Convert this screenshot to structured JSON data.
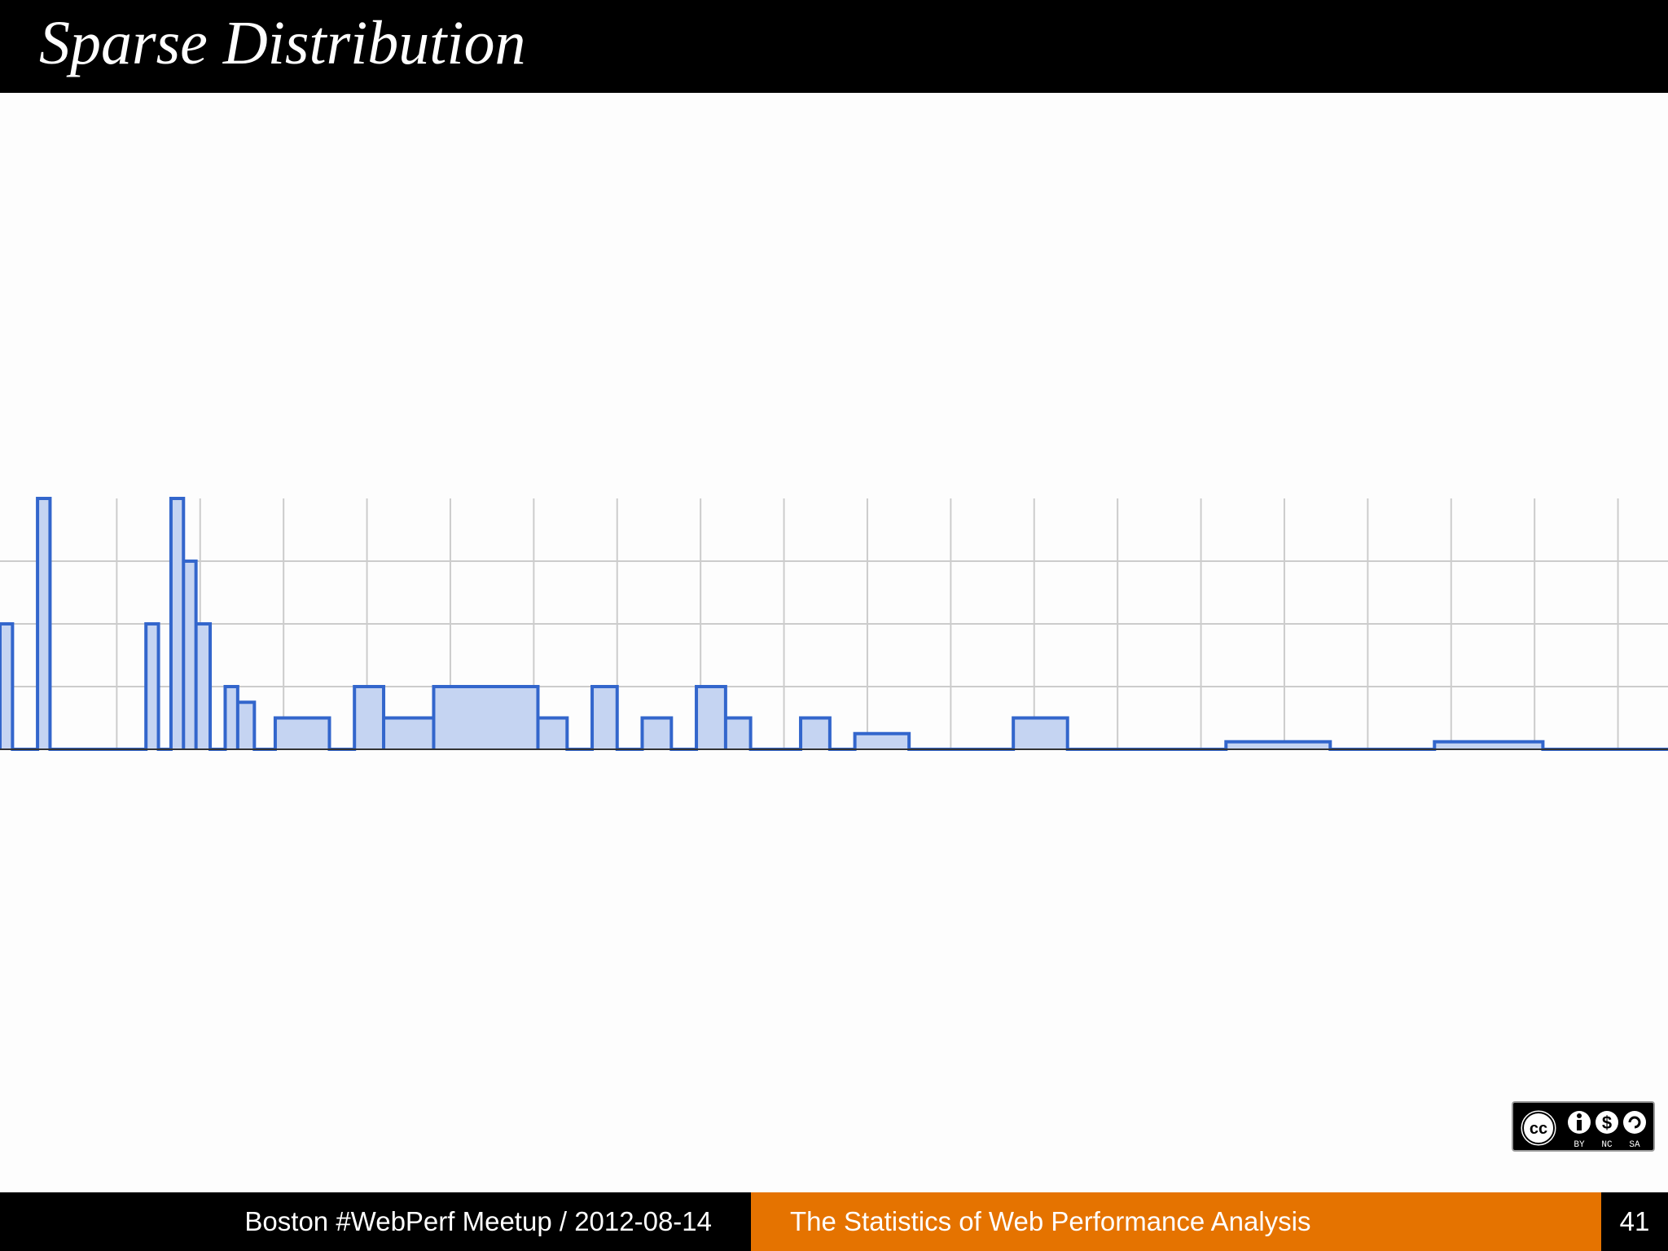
{
  "slide": {
    "title": "Sparse Distribution",
    "page_number": "41"
  },
  "footer": {
    "left_text": "Boston #WebPerf Meetup / 2012-08-14",
    "center_text": "The Statistics of Web Performance Analysis"
  },
  "license": {
    "icon": "cc-by-nc-sa-icon",
    "labels": [
      "BY",
      "NC",
      "SA"
    ]
  },
  "chart_data": {
    "type": "area",
    "step": true,
    "title": "",
    "xlabel": "",
    "ylabel": "",
    "x_range": [
      0,
      20
    ],
    "ylim": [
      0,
      4
    ],
    "grid": true,
    "y_gridlines": [
      1,
      2,
      3
    ],
    "x_gridlines": [
      1.4,
      2.4,
      3.4,
      4.4,
      5.4,
      6.4,
      7.4,
      8.4,
      9.4,
      10.4,
      11.4,
      12.4,
      13.4,
      14.4,
      15.4,
      16.4,
      17.4,
      18.4,
      19.4
    ],
    "colors": {
      "line": "#3366cc",
      "fill": "#c5d4f2",
      "grid": "#cccccc",
      "baseline": "#333333"
    },
    "series": [
      {
        "bins": [
          {
            "x0": 0.0,
            "x1": 0.15,
            "y": 2
          },
          {
            "x0": 0.45,
            "x1": 0.6,
            "y": 4
          },
          {
            "x0": 1.75,
            "x1": 1.9,
            "y": 2
          },
          {
            "x0": 2.05,
            "x1": 2.2,
            "y": 4
          },
          {
            "x0": 2.2,
            "x1": 2.35,
            "y": 3
          },
          {
            "x0": 2.35,
            "x1": 2.52,
            "y": 2
          },
          {
            "x0": 2.7,
            "x1": 2.85,
            "y": 1
          },
          {
            "x0": 2.85,
            "x1": 3.05,
            "y": 0.75
          },
          {
            "x0": 3.3,
            "x1": 3.95,
            "y": 0.5
          },
          {
            "x0": 4.25,
            "x1": 4.6,
            "y": 1
          },
          {
            "x0": 4.6,
            "x1": 5.2,
            "y": 0.5
          },
          {
            "x0": 5.2,
            "x1": 6.45,
            "y": 1
          },
          {
            "x0": 6.45,
            "x1": 6.8,
            "y": 0.5
          },
          {
            "x0": 7.1,
            "x1": 7.4,
            "y": 1
          },
          {
            "x0": 7.7,
            "x1": 8.05,
            "y": 0.5
          },
          {
            "x0": 8.35,
            "x1": 8.7,
            "y": 1
          },
          {
            "x0": 8.7,
            "x1": 9.0,
            "y": 0.5
          },
          {
            "x0": 9.6,
            "x1": 9.95,
            "y": 0.5
          },
          {
            "x0": 10.25,
            "x1": 10.9,
            "y": 0.25
          },
          {
            "x0": 12.15,
            "x1": 12.8,
            "y": 0.5
          },
          {
            "x0": 14.7,
            "x1": 15.95,
            "y": 0.12
          },
          {
            "x0": 17.2,
            "x1": 18.5,
            "y": 0.12
          }
        ]
      }
    ]
  }
}
